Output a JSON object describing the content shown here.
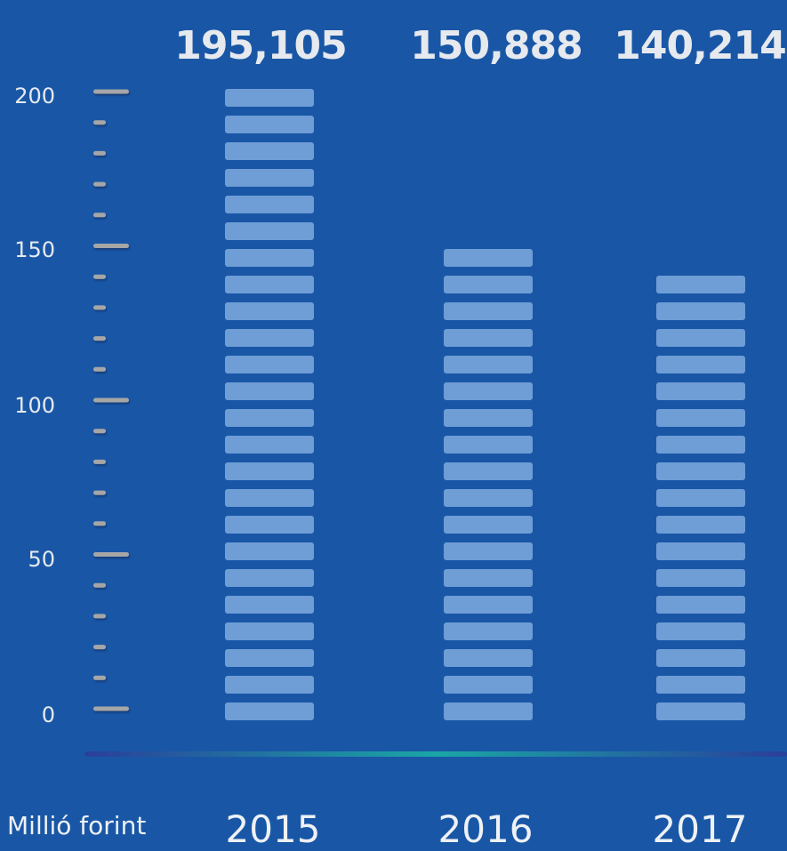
{
  "chart_data": {
    "type": "bar",
    "categories": [
      "2015",
      "2016",
      "2017"
    ],
    "values": [
      195105,
      150888,
      140214
    ],
    "value_labels": [
      "195,105",
      "150,888",
      "140,214"
    ],
    "xlabel": "Millió forint",
    "ylabel": "",
    "y_ticks": [
      "0",
      "50",
      "100",
      "150",
      "200"
    ],
    "ylim": [
      0,
      200
    ],
    "grid": false,
    "colors": {
      "background": "#1957a6",
      "bar_segment": "#6f9dd6",
      "tick": "#a6a6a6",
      "text": "#e6e9ee"
    }
  }
}
